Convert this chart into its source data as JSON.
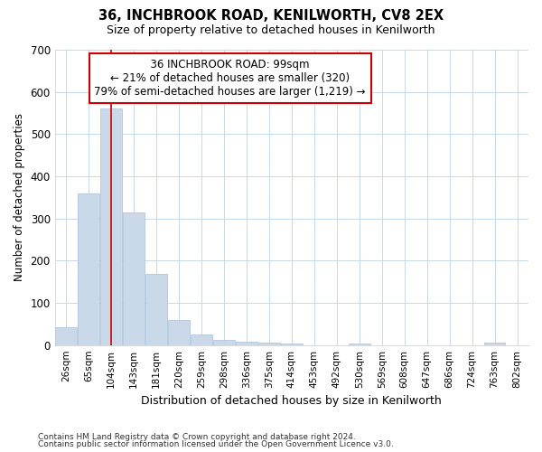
{
  "title1": "36, INCHBROOK ROAD, KENILWORTH, CV8 2EX",
  "title2": "Size of property relative to detached houses in Kenilworth",
  "xlabel": "Distribution of detached houses by size in Kenilworth",
  "ylabel": "Number of detached properties",
  "footnote1": "Contains HM Land Registry data © Crown copyright and database right 2024.",
  "footnote2": "Contains public sector information licensed under the Open Government Licence v3.0.",
  "bins": [
    "26sqm",
    "65sqm",
    "104sqm",
    "143sqm",
    "181sqm",
    "220sqm",
    "259sqm",
    "298sqm",
    "336sqm",
    "375sqm",
    "414sqm",
    "453sqm",
    "492sqm",
    "530sqm",
    "569sqm",
    "608sqm",
    "647sqm",
    "686sqm",
    "724sqm",
    "763sqm",
    "802sqm"
  ],
  "bar_values": [
    43,
    360,
    560,
    315,
    168,
    60,
    25,
    13,
    7,
    5,
    4,
    0,
    0,
    4,
    0,
    0,
    0,
    0,
    0,
    5,
    0
  ],
  "bar_color": "#c9d9ea",
  "bar_edge_color": "#a8c0d8",
  "grid_color": "#c8d8e8",
  "vline_x_index": 2,
  "vline_color": "#cc0000",
  "annotation_text": "  36 INCHBROOK ROAD: 99sqm  \n← 21% of detached houses are smaller (320)\n79% of semi-detached houses are larger (1,219) →",
  "annotation_box_color": "#ffffff",
  "annotation_box_edge": "#cc0000",
  "ylim": [
    0,
    700
  ],
  "yticks": [
    0,
    100,
    200,
    300,
    400,
    500,
    600,
    700
  ],
  "fig_bg": "#ffffff",
  "plot_bg": "#ffffff"
}
